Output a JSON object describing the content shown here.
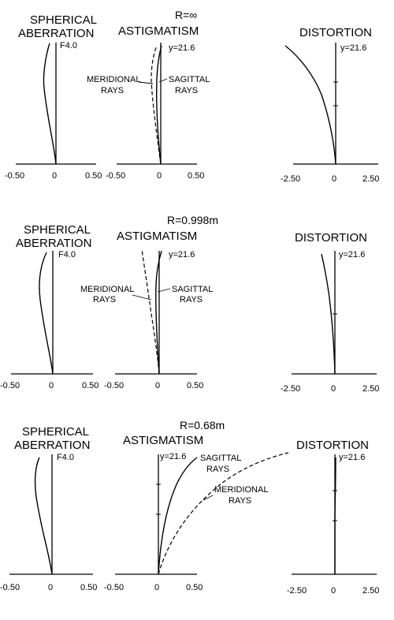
{
  "rows": [
    {
      "radius_label": "R=∞",
      "spherical": {
        "title_lines": [
          "SPHERICAL",
          "ABERRATION"
        ],
        "fnum": "F4.0",
        "ticks": [
          "-0.50",
          "0",
          "0.50"
        ]
      },
      "astig": {
        "title": "ASTIGMATISM",
        "yval": "y=21.6",
        "meridional_lines": [
          "MERIDIONAL",
          "RAYS"
        ],
        "sagittal_lines": [
          "SAGITTAL",
          "RAYS"
        ],
        "ticks": [
          "-0.50",
          "0",
          "0.50"
        ]
      },
      "distortion": {
        "title": "DISTORTION",
        "yval": "y=21.6",
        "ticks": [
          "-2.50",
          "0",
          "2.50"
        ]
      }
    },
    {
      "radius_label": "R=0.998m",
      "spherical": {
        "title_lines": [
          "SPHERICAL",
          "ABERRATION"
        ],
        "fnum": "F4.0",
        "ticks": [
          "-0.50",
          "0",
          "0.50"
        ]
      },
      "astig": {
        "title": "ASTIGMATISM",
        "yval": "y=21.6",
        "meridional_lines": [
          "MERIDIONAL",
          "RAYS"
        ],
        "sagittal_lines": [
          "SAGITTAL",
          "RAYS"
        ],
        "ticks": [
          "-0.50",
          "0",
          "0.50"
        ]
      },
      "distortion": {
        "title": "DISTORTION",
        "yval": "y=21.6",
        "ticks": [
          "-2.50",
          "0",
          "2.50"
        ]
      }
    },
    {
      "radius_label": "R=0.68m",
      "spherical": {
        "title_lines": [
          "SPHERICAL",
          "ABERRATION"
        ],
        "fnum": "F4.0",
        "ticks": [
          "-0.50",
          "0",
          "0.50"
        ]
      },
      "astig": {
        "title": "ASTIGMATISM",
        "yval": "y=21.6",
        "meridional_lines": [
          "MERIDIONAL",
          "RAYS"
        ],
        "sagittal_lines": [
          "SAGITTAL",
          "RAYS"
        ],
        "ticks": [
          "-0.50",
          "0",
          "0.50"
        ]
      },
      "distortion": {
        "title": "DISTORTION",
        "yval": "y=21.6",
        "ticks": [
          "-2.50",
          "0",
          "2.50"
        ]
      }
    }
  ]
}
